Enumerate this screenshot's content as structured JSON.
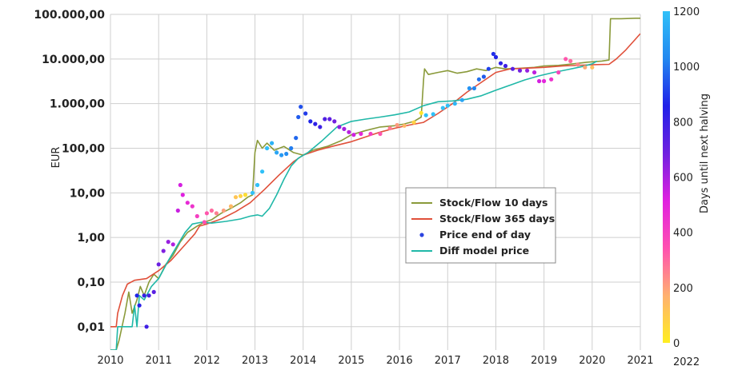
{
  "chart_data": {
    "type": "line",
    "title": "",
    "xlabel": "",
    "ylabel": "EUR",
    "yscale": "log",
    "ylim": [
      0.003,
      100000
    ],
    "xlim": [
      2010,
      2021
    ],
    "x_ticks": [
      "2010",
      "2011",
      "2012",
      "2013",
      "2014",
      "2015",
      "2016",
      "2017",
      "2018",
      "2019",
      "2020",
      "2021"
    ],
    "y_ticks": [
      {
        "value": 100000,
        "label": "100.000,00"
      },
      {
        "value": 10000,
        "label": "10.000,00"
      },
      {
        "value": 1000,
        "label": "1.000,00"
      },
      {
        "value": 100,
        "label": "100,00"
      },
      {
        "value": 10,
        "label": "10,00"
      },
      {
        "value": 1,
        "label": "1,00"
      },
      {
        "value": 0.1,
        "label": "0,10"
      },
      {
        "value": 0.01,
        "label": "0,01"
      }
    ],
    "grid": true,
    "legend_position": "center-right",
    "series": [
      {
        "name": "Stock/Flow 10 days",
        "color": "#8a9a3a",
        "points": [
          [
            2010.0,
            0.003
          ],
          [
            2010.12,
            0.003
          ],
          [
            2010.18,
            0.005
          ],
          [
            2010.3,
            0.02
          ],
          [
            2010.38,
            0.06
          ],
          [
            2010.45,
            0.02
          ],
          [
            2010.55,
            0.04
          ],
          [
            2010.62,
            0.08
          ],
          [
            2010.7,
            0.05
          ],
          [
            2010.8,
            0.1
          ],
          [
            2010.9,
            0.15
          ],
          [
            2011.0,
            0.12
          ],
          [
            2011.15,
            0.25
          ],
          [
            2011.3,
            0.4
          ],
          [
            2011.45,
            0.8
          ],
          [
            2011.6,
            1.3
          ],
          [
            2011.8,
            1.8
          ],
          [
            2011.95,
            2.2
          ],
          [
            2012.1,
            2.5
          ],
          [
            2012.3,
            3.5
          ],
          [
            2012.5,
            4.5
          ],
          [
            2012.7,
            6
          ],
          [
            2012.85,
            8
          ],
          [
            2012.95,
            9
          ],
          [
            2013.0,
            80
          ],
          [
            2013.05,
            150
          ],
          [
            2013.15,
            100
          ],
          [
            2013.25,
            130
          ],
          [
            2013.4,
            90
          ],
          [
            2013.6,
            110
          ],
          [
            2013.8,
            80
          ],
          [
            2014.0,
            70
          ],
          [
            2014.2,
            90
          ],
          [
            2014.5,
            110
          ],
          [
            2014.8,
            150
          ],
          [
            2015.0,
            200
          ],
          [
            2015.3,
            250
          ],
          [
            2015.6,
            300
          ],
          [
            2015.9,
            320
          ],
          [
            2016.1,
            350
          ],
          [
            2016.3,
            400
          ],
          [
            2016.45,
            500
          ],
          [
            2016.5,
            3500
          ],
          [
            2016.52,
            6000
          ],
          [
            2016.6,
            4500
          ],
          [
            2016.8,
            5000
          ],
          [
            2017.0,
            5500
          ],
          [
            2017.2,
            4800
          ],
          [
            2017.4,
            5200
          ],
          [
            2017.6,
            6000
          ],
          [
            2017.8,
            5500
          ],
          [
            2018.0,
            6500
          ],
          [
            2018.2,
            6000
          ],
          [
            2018.5,
            6200
          ],
          [
            2018.8,
            6500
          ],
          [
            2019.0,
            7000
          ],
          [
            2019.3,
            7200
          ],
          [
            2019.6,
            7800
          ],
          [
            2019.9,
            8500
          ],
          [
            2020.2,
            9000
          ],
          [
            2020.35,
            9500
          ],
          [
            2020.38,
            80000
          ],
          [
            2020.6,
            80000
          ],
          [
            2020.9,
            82000
          ],
          [
            2021.0,
            82000
          ]
        ]
      },
      {
        "name": "Stock/Flow 365 days",
        "color": "#e0503a",
        "points": [
          [
            2010.0,
            0.01
          ],
          [
            2010.12,
            0.01
          ],
          [
            2010.15,
            0.02
          ],
          [
            2010.25,
            0.05
          ],
          [
            2010.35,
            0.09
          ],
          [
            2010.5,
            0.11
          ],
          [
            2010.75,
            0.12
          ],
          [
            2011.0,
            0.18
          ],
          [
            2011.25,
            0.3
          ],
          [
            2011.5,
            0.6
          ],
          [
            2011.75,
            1.2
          ],
          [
            2011.85,
            1.8
          ],
          [
            2012.0,
            2.0
          ],
          [
            2012.3,
            2.6
          ],
          [
            2012.6,
            3.8
          ],
          [
            2012.9,
            6
          ],
          [
            2013.2,
            12
          ],
          [
            2013.5,
            25
          ],
          [
            2013.8,
            50
          ],
          [
            2014.0,
            70
          ],
          [
            2014.3,
            90
          ],
          [
            2014.6,
            110
          ],
          [
            2015.0,
            140
          ],
          [
            2015.3,
            180
          ],
          [
            2015.6,
            230
          ],
          [
            2015.9,
            280
          ],
          [
            2016.2,
            330
          ],
          [
            2016.5,
            380
          ],
          [
            2016.8,
            600
          ],
          [
            2017.1,
            1000
          ],
          [
            2017.4,
            1800
          ],
          [
            2017.7,
            3000
          ],
          [
            2018.0,
            5000
          ],
          [
            2018.3,
            6000
          ],
          [
            2018.6,
            6200
          ],
          [
            2019.0,
            6500
          ],
          [
            2019.4,
            7000
          ],
          [
            2019.8,
            7300
          ],
          [
            2020.1,
            7500
          ],
          [
            2020.35,
            7600
          ],
          [
            2020.5,
            10000
          ],
          [
            2020.7,
            16000
          ],
          [
            2020.9,
            28000
          ],
          [
            2021.0,
            37000
          ]
        ]
      },
      {
        "name": "Diff model price",
        "color": "#20b8a8",
        "points": [
          [
            2010.0,
            0.003
          ],
          [
            2010.12,
            0.003
          ],
          [
            2010.15,
            0.01
          ],
          [
            2010.2,
            0.01
          ],
          [
            2010.45,
            0.01
          ],
          [
            2010.5,
            0.03
          ],
          [
            2010.55,
            0.01
          ],
          [
            2010.6,
            0.05
          ],
          [
            2010.7,
            0.04
          ],
          [
            2010.85,
            0.08
          ],
          [
            2011.0,
            0.12
          ],
          [
            2011.2,
            0.3
          ],
          [
            2011.4,
            0.7
          ],
          [
            2011.55,
            1.3
          ],
          [
            2011.7,
            2.0
          ],
          [
            2011.9,
            2.2
          ],
          [
            2012.1,
            2.1
          ],
          [
            2012.4,
            2.3
          ],
          [
            2012.7,
            2.6
          ],
          [
            2012.9,
            3.0
          ],
          [
            2013.05,
            3.2
          ],
          [
            2013.15,
            3.0
          ],
          [
            2013.3,
            4.5
          ],
          [
            2013.45,
            9
          ],
          [
            2013.6,
            20
          ],
          [
            2013.75,
            40
          ],
          [
            2013.9,
            60
          ],
          [
            2014.1,
            80
          ],
          [
            2014.4,
            150
          ],
          [
            2014.7,
            300
          ],
          [
            2015.0,
            400
          ],
          [
            2015.3,
            450
          ],
          [
            2015.6,
            500
          ],
          [
            2015.9,
            560
          ],
          [
            2016.2,
            650
          ],
          [
            2016.5,
            900
          ],
          [
            2016.8,
            1100
          ],
          [
            2017.1,
            1150
          ],
          [
            2017.4,
            1250
          ],
          [
            2017.7,
            1500
          ],
          [
            2018.0,
            2000
          ],
          [
            2018.3,
            2600
          ],
          [
            2018.6,
            3400
          ],
          [
            2018.9,
            4200
          ],
          [
            2019.2,
            5000
          ],
          [
            2019.5,
            5800
          ],
          [
            2019.8,
            6800
          ],
          [
            2020.0,
            7800
          ],
          [
            2020.1,
            9000
          ]
        ]
      },
      {
        "name": "Price end of day",
        "color": "#2c43e0",
        "points": [
          [
            2010.75,
            0.01
          ],
          [
            2010.55,
            0.05
          ],
          [
            2010.6,
            0.03
          ],
          [
            2010.7,
            0.05
          ],
          [
            2010.8,
            0.05
          ],
          [
            2010.9,
            0.06
          ],
          [
            2011.0,
            0.25
          ],
          [
            2011.1,
            0.5
          ],
          [
            2011.2,
            0.8
          ],
          [
            2011.3,
            0.7
          ],
          [
            2011.4,
            4
          ],
          [
            2011.45,
            15
          ],
          [
            2011.5,
            9
          ],
          [
            2011.6,
            6
          ],
          [
            2011.7,
            5
          ],
          [
            2011.8,
            3
          ],
          [
            2011.95,
            2.2
          ],
          [
            2012.0,
            3.5
          ],
          [
            2012.1,
            4
          ],
          [
            2012.2,
            3.5
          ],
          [
            2012.35,
            4
          ],
          [
            2012.5,
            5
          ],
          [
            2012.6,
            8
          ],
          [
            2012.7,
            8.5
          ],
          [
            2012.8,
            9
          ],
          [
            2012.95,
            10
          ],
          [
            2013.05,
            15
          ],
          [
            2013.15,
            30
          ],
          [
            2013.25,
            100
          ],
          [
            2013.35,
            130
          ],
          [
            2013.45,
            80
          ],
          [
            2013.55,
            70
          ],
          [
            2013.65,
            75
          ],
          [
            2013.75,
            100
          ],
          [
            2013.85,
            170
          ],
          [
            2013.9,
            500
          ],
          [
            2013.95,
            850
          ],
          [
            2014.05,
            600
          ],
          [
            2014.15,
            400
          ],
          [
            2014.25,
            350
          ],
          [
            2014.35,
            300
          ],
          [
            2014.45,
            450
          ],
          [
            2014.55,
            450
          ],
          [
            2014.65,
            400
          ],
          [
            2014.75,
            300
          ],
          [
            2014.85,
            270
          ],
          [
            2014.95,
            230
          ],
          [
            2015.05,
            200
          ],
          [
            2015.2,
            210
          ],
          [
            2015.4,
            210
          ],
          [
            2015.6,
            210
          ],
          [
            2015.8,
            280
          ],
          [
            2015.95,
            330
          ],
          [
            2016.1,
            320
          ],
          [
            2016.3,
            380
          ],
          [
            2016.45,
            620
          ],
          [
            2016.55,
            550
          ],
          [
            2016.7,
            580
          ],
          [
            2016.9,
            800
          ],
          [
            2017.0,
            900
          ],
          [
            2017.15,
            1000
          ],
          [
            2017.3,
            1200
          ],
          [
            2017.45,
            2200
          ],
          [
            2017.55,
            2200
          ],
          [
            2017.65,
            3500
          ],
          [
            2017.75,
            4000
          ],
          [
            2017.85,
            6000
          ],
          [
            2017.95,
            13000
          ],
          [
            2018.0,
            11000
          ],
          [
            2018.1,
            8000
          ],
          [
            2018.2,
            7000
          ],
          [
            2018.35,
            6000
          ],
          [
            2018.5,
            5500
          ],
          [
            2018.65,
            5500
          ],
          [
            2018.8,
            5000
          ],
          [
            2018.9,
            3200
          ],
          [
            2019.0,
            3200
          ],
          [
            2019.15,
            3500
          ],
          [
            2019.3,
            5000
          ],
          [
            2019.45,
            10000
          ],
          [
            2019.55,
            9000
          ],
          [
            2019.7,
            7500
          ],
          [
            2019.85,
            6500
          ],
          [
            2020.0,
            6500
          ]
        ]
      }
    ],
    "colorbar": {
      "label": "Days until next halving",
      "min": 0,
      "max": 1200,
      "ticks": [
        "0",
        "200",
        "400",
        "600",
        "800",
        "1000",
        "1200"
      ],
      "stops": [
        "#ffee20",
        "#ffb070",
        "#ff50b0",
        "#e020e0",
        "#7020e0",
        "#2020e8",
        "#2288f0",
        "#30c0f8"
      ]
    }
  }
}
